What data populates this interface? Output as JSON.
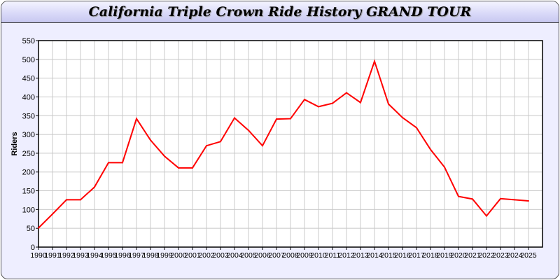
{
  "chart_data": {
    "type": "line",
    "title": "California Triple Crown Ride History GRAND TOUR",
    "xlabel": "",
    "ylabel": "Riders",
    "xlim": [
      1990,
      2026
    ],
    "ylim": [
      0,
      550
    ],
    "yticks": [
      0,
      50,
      100,
      150,
      200,
      250,
      300,
      350,
      400,
      450,
      500,
      550
    ],
    "grid": true,
    "line_color": "#ff0000",
    "x": [
      1990,
      1991,
      1992,
      1993,
      1994,
      1995,
      1996,
      1997,
      1998,
      1999,
      2000,
      2001,
      2002,
      2003,
      2004,
      2005,
      2006,
      2007,
      2008,
      2009,
      2010,
      2011,
      2012,
      2013,
      2014,
      2015,
      2016,
      2017,
      2018,
      2019,
      2020,
      2021,
      2022,
      2023,
      2024,
      2025
    ],
    "values": [
      51,
      88,
      126,
      126,
      160,
      225,
      225,
      342,
      285,
      242,
      211,
      211,
      270,
      281,
      344,
      311,
      270,
      341,
      342,
      393,
      374,
      383,
      411,
      385,
      495,
      381,
      345,
      318,
      260,
      213,
      135,
      128,
      83,
      129,
      126,
      123
    ]
  }
}
